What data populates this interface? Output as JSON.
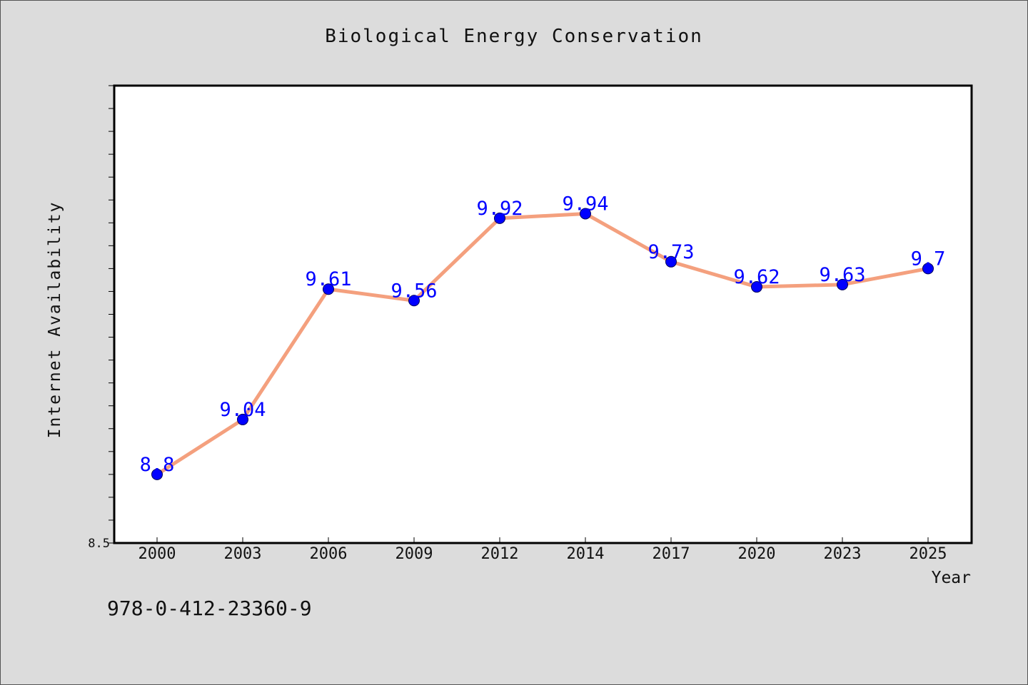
{
  "chart_data": {
    "type": "line",
    "title": "Biological Energy Conservation",
    "xlabel": "Year",
    "ylabel": "Internet Availability",
    "categories": [
      "2000",
      "2003",
      "2006",
      "2009",
      "2012",
      "2014",
      "2017",
      "2020",
      "2023",
      "2025"
    ],
    "series": [
      {
        "values": [
          8.8,
          9.04,
          9.61,
          9.56,
          9.92,
          9.94,
          9.73,
          9.62,
          9.63,
          9.7
        ],
        "data_labels": [
          "8.8",
          "9.04",
          "9.61",
          "9.56",
          "9.92",
          "9.94",
          "9.73",
          "9.62",
          "9.63",
          "9.7"
        ],
        "line_color": "#f4a07e",
        "marker_color": "#0000ff"
      }
    ],
    "ylim": [
      8.5,
      10.5
    ],
    "y_tick_labels": [
      "8.5"
    ],
    "grid": false,
    "legend": "none"
  },
  "footer": {
    "code": "978-0-412-23360-9"
  },
  "colors": {
    "background": "#dcdcdc",
    "plot_background": "#ffffff",
    "line": "#f4a07e",
    "marker": "#0000ff",
    "label": "#0000ff"
  }
}
